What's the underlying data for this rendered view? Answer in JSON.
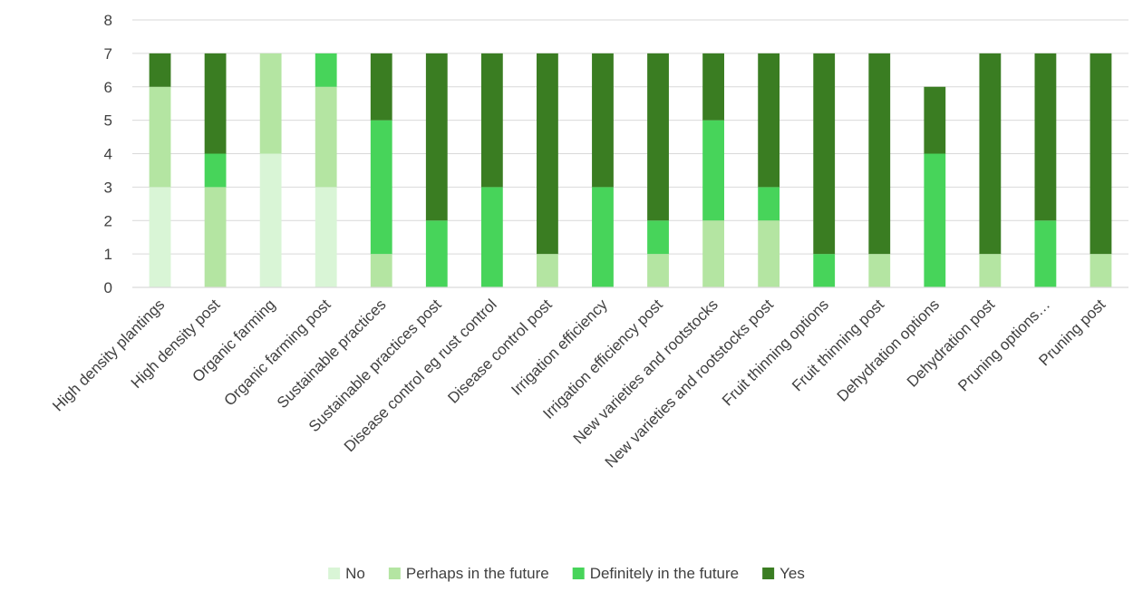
{
  "chart_data": {
    "type": "bar",
    "stacked": true,
    "categories": [
      "High density plantings",
      "High density post",
      "Organic farming",
      "Organic farming post",
      "Sustainable practices",
      "Sustainable practices post",
      "Disease control eg rust control",
      "Disease control post",
      "Irrigation efficiency",
      "Irrigation efficiency post",
      "New varieties and rootstocks",
      "New varieties and rootstocks post",
      "Fruit thinning options",
      "Fruit thinning post",
      "Dehydration options",
      "Dehydration post",
      "Pruning options…",
      "Pruning post"
    ],
    "series": [
      {
        "name": "No",
        "color": "#d9f5d6",
        "values": [
          3,
          0,
          4,
          3,
          0,
          0,
          0,
          0,
          0,
          0,
          0,
          0,
          0,
          0,
          0,
          0,
          0,
          0
        ]
      },
      {
        "name": "Perhaps in the future",
        "color": "#b4e5a2",
        "values": [
          3,
          3,
          3,
          3,
          1,
          0,
          0,
          1,
          0,
          1,
          2,
          2,
          0,
          1,
          0,
          1,
          0,
          1
        ]
      },
      {
        "name": "Definitely in the future",
        "color": "#47d45a",
        "values": [
          0,
          1,
          0,
          1,
          4,
          2,
          3,
          0,
          3,
          1,
          3,
          1,
          1,
          0,
          4,
          0,
          2,
          0
        ]
      },
      {
        "name": "Yes",
        "color": "#3a7d22",
        "values": [
          1,
          3,
          0,
          0,
          2,
          5,
          4,
          6,
          4,
          5,
          2,
          4,
          6,
          6,
          2,
          6,
          5,
          6
        ]
      }
    ],
    "ylim": [
      0,
      8
    ],
    "yticks": [
      "0",
      "1",
      "2",
      "3",
      "4",
      "5",
      "6",
      "7",
      "8"
    ],
    "grid": true,
    "legend_position": "bottom",
    "title": "",
    "xlabel": "",
    "ylabel": ""
  }
}
